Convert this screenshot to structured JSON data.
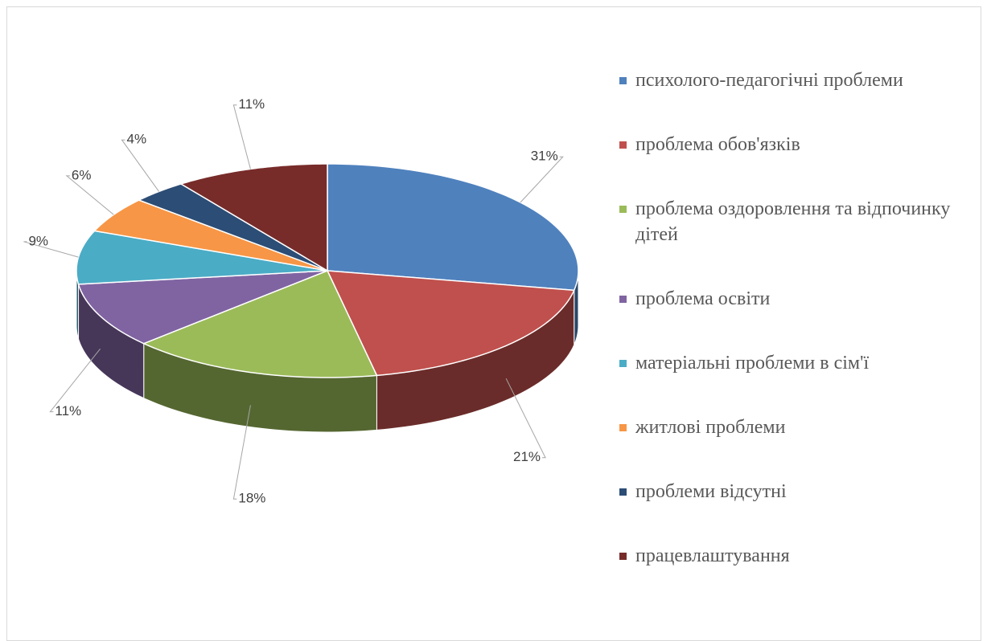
{
  "chart_data": {
    "type": "pie3d",
    "categories": [
      "психолого-педагогічні проблеми",
      "проблема обов'язків",
      "проблема оздоровлення та відпочинку дітей",
      "проблема освіти",
      "матеріальні проблеми в сім'ї",
      "житлові проблеми",
      "проблеми відсутні",
      "працевлаштування"
    ],
    "values": [
      31,
      21,
      18,
      11,
      9,
      6,
      4,
      11
    ],
    "value_labels": [
      "31%",
      "21%",
      "18%",
      "11%",
      "9%",
      "6%",
      "4%",
      "11%"
    ],
    "colors": [
      "#4f81bd",
      "#c0504d",
      "#9bbb59",
      "#8064a2",
      "#4bacc6",
      "#f79646",
      "#2c4d75",
      "#772c2a"
    ],
    "legend": "right"
  }
}
